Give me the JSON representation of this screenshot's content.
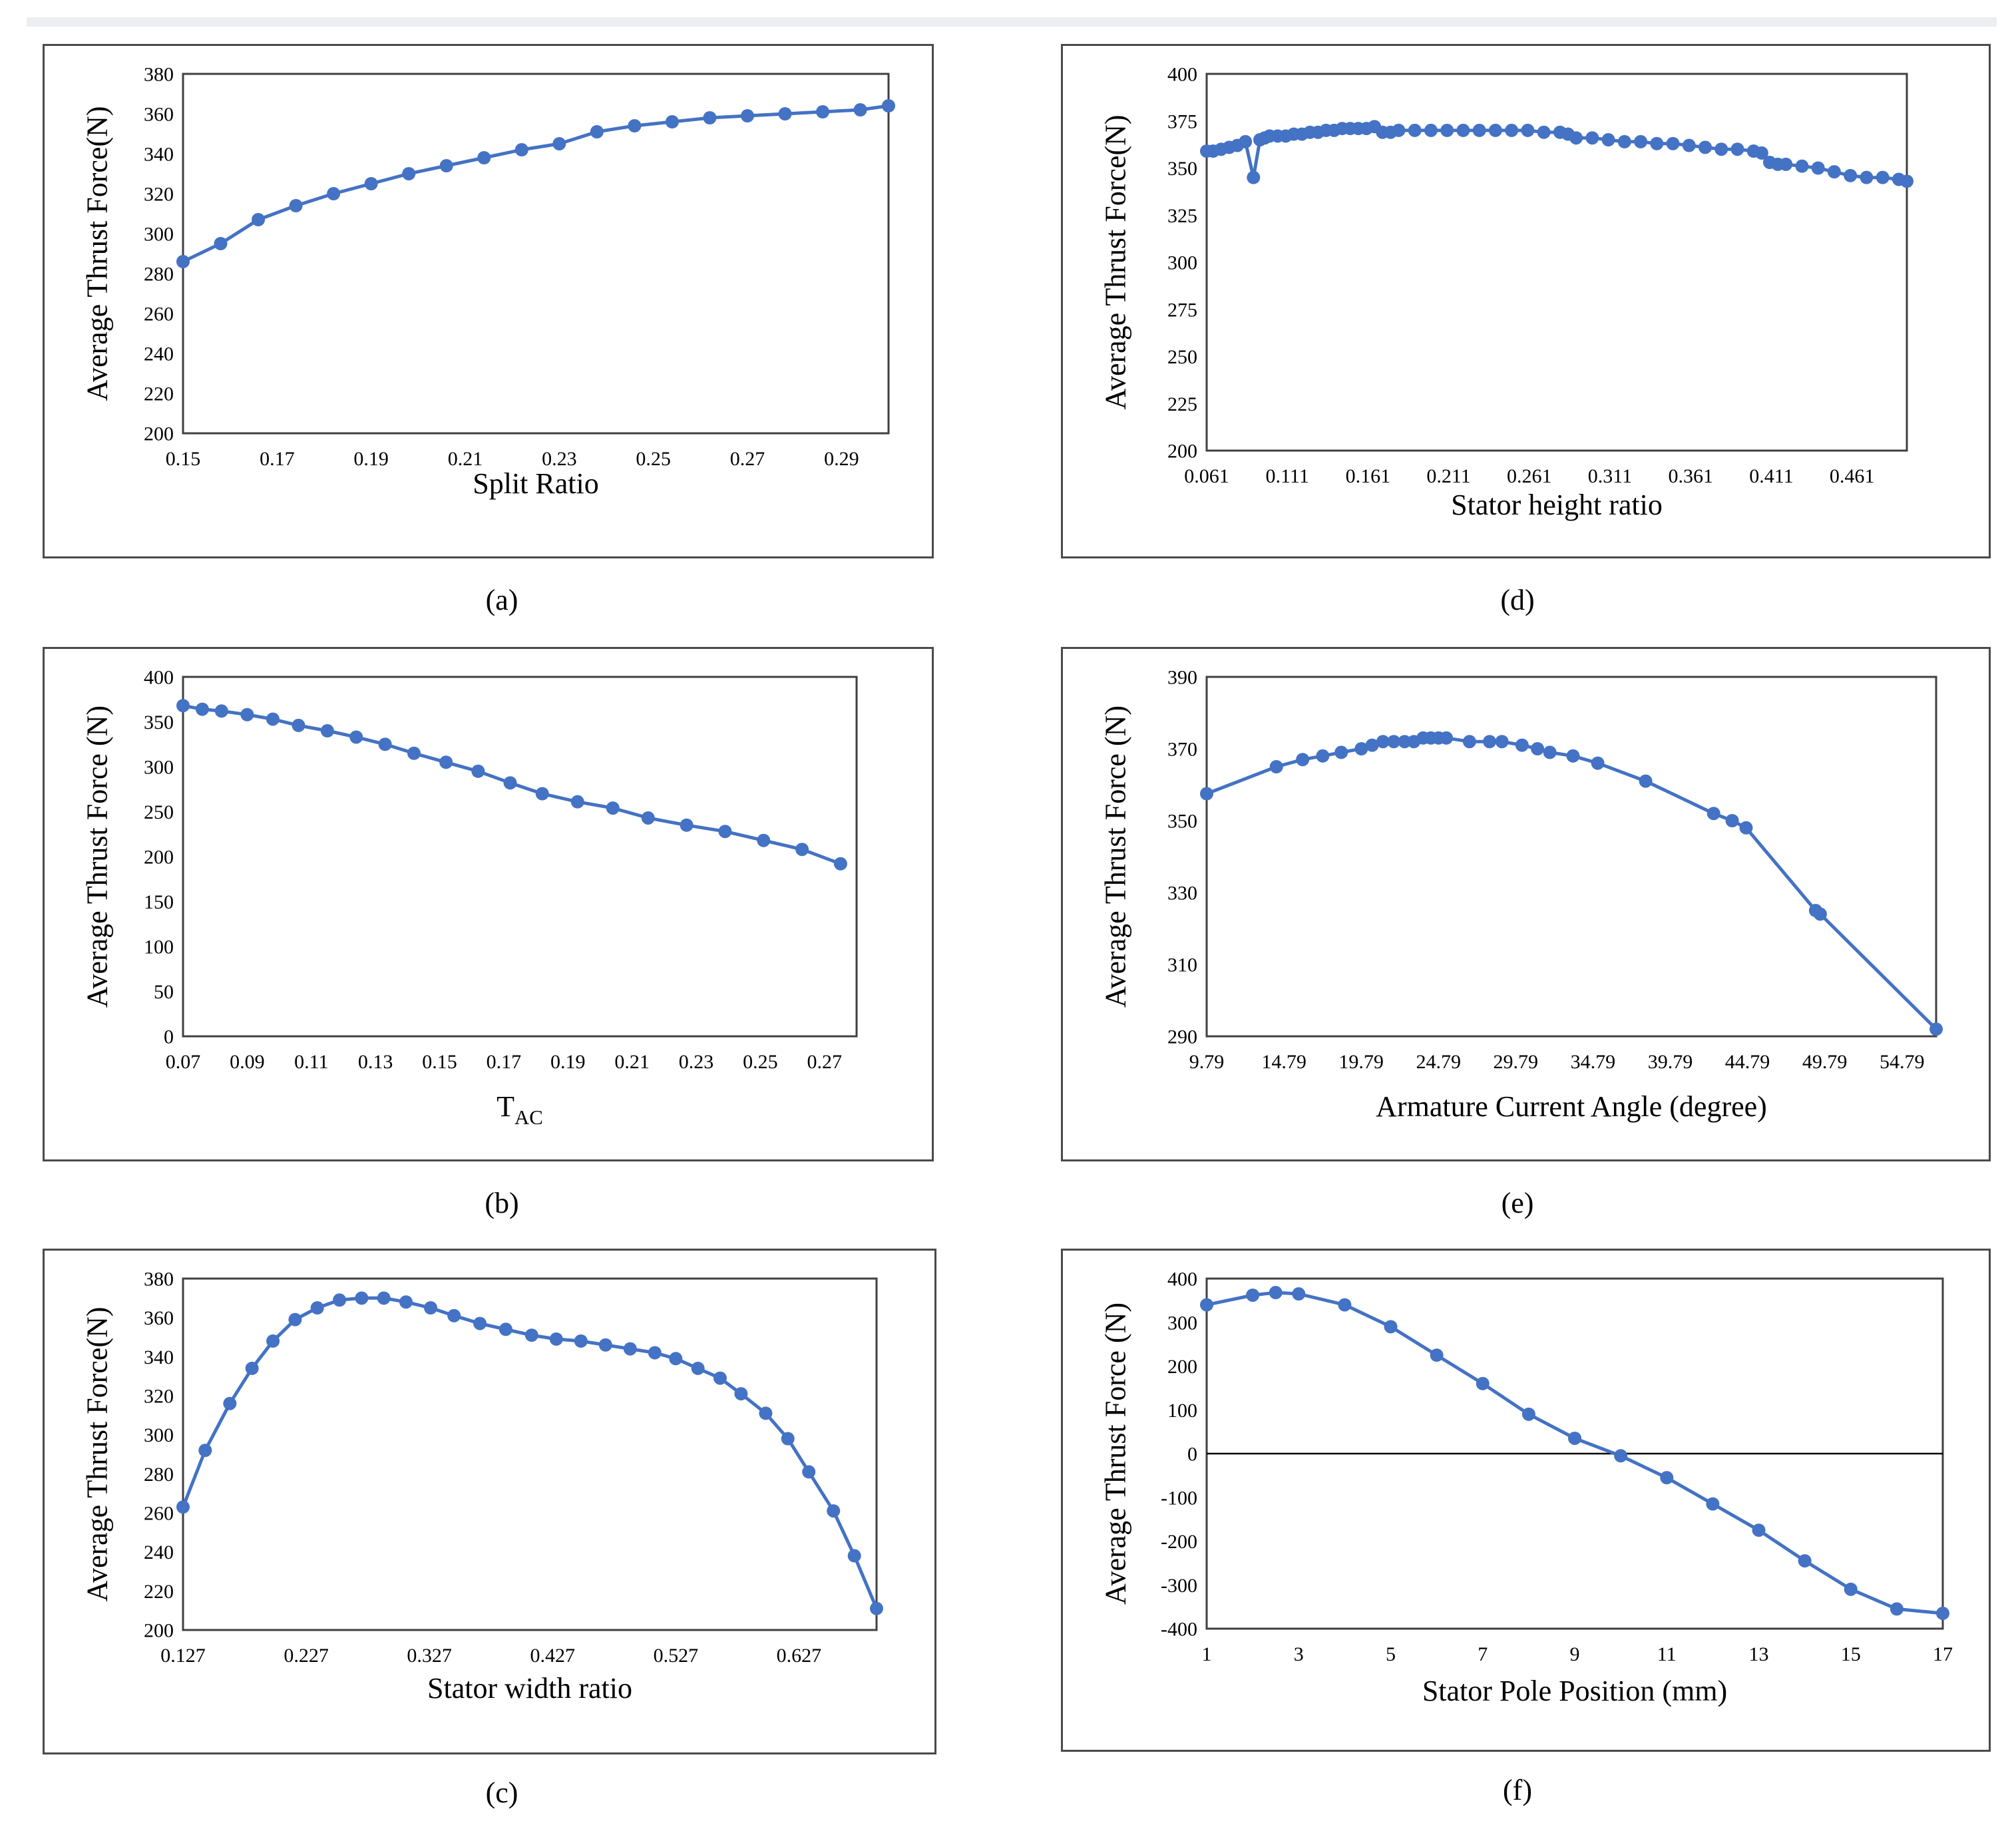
{
  "colors": {
    "series": "#4472c4",
    "axis": "#404040",
    "frame": "#4a4a4a"
  },
  "chart_data": [
    {
      "id": "a",
      "caption": "(a)",
      "type": "line",
      "title": "",
      "xlabel": "Split Ratio",
      "ylabel": "Average Thrust Force(N)",
      "xlim": [
        0.15,
        0.3
      ],
      "ylim": [
        200,
        380
      ],
      "xticks": [
        0.15,
        0.17,
        0.19,
        0.21,
        0.23,
        0.25,
        0.27,
        0.29
      ],
      "xtick_labels": [
        "0.15",
        "0.17",
        "0.19",
        "0.21",
        "0.23",
        "0.25",
        "0.27",
        "0.29"
      ],
      "yticks": [
        200,
        220,
        240,
        260,
        280,
        300,
        320,
        340,
        360,
        380
      ],
      "ytick_labels": [
        "200",
        "220",
        "240",
        "260",
        "280",
        "300",
        "320",
        "340",
        "360",
        "380"
      ],
      "x": [
        0.15,
        0.158,
        0.166,
        0.174,
        0.182,
        0.19,
        0.198,
        0.206,
        0.214,
        0.222,
        0.23,
        0.238,
        0.246,
        0.254,
        0.262,
        0.27,
        0.278,
        0.286,
        0.294,
        0.3
      ],
      "y": [
        286,
        295,
        307,
        314,
        320,
        325,
        330,
        334,
        338,
        342,
        345,
        351,
        354,
        356,
        358,
        359,
        360,
        361,
        362,
        364
      ]
    },
    {
      "id": "b",
      "caption": "(b)",
      "type": "line",
      "title": "",
      "xlabel": "T",
      "xlabel_sub": "AC",
      "ylabel": "Average Thrust Force (N)",
      "xlim": [
        0.07,
        0.28
      ],
      "ylim": [
        0,
        400
      ],
      "xticks": [
        0.07,
        0.09,
        0.11,
        0.13,
        0.15,
        0.17,
        0.19,
        0.21,
        0.23,
        0.25,
        0.27
      ],
      "xtick_labels": [
        "0.07",
        "0.09",
        "0.11",
        "0.13",
        "0.15",
        "0.17",
        "0.19",
        "0.21",
        "0.23",
        "0.25",
        "0.27"
      ],
      "yticks": [
        0,
        50,
        100,
        150,
        200,
        250,
        300,
        350,
        400
      ],
      "ytick_labels": [
        "0",
        "50",
        "100",
        "150",
        "200",
        "250",
        "300",
        "350",
        "400"
      ],
      "x": [
        0.07,
        0.076,
        0.082,
        0.09,
        0.098,
        0.106,
        0.115,
        0.124,
        0.133,
        0.142,
        0.152,
        0.162,
        0.172,
        0.182,
        0.193,
        0.204,
        0.215,
        0.227,
        0.239,
        0.251,
        0.263,
        0.275
      ],
      "y": [
        368,
        364,
        362,
        358,
        353,
        346,
        340,
        333,
        325,
        315,
        305,
        295,
        282,
        270,
        261,
        254,
        243,
        235,
        228,
        218,
        208,
        192
      ]
    },
    {
      "id": "c",
      "caption": "(c)",
      "type": "line",
      "title": "",
      "xlabel": "Stator width ratio",
      "ylabel": "Average Thrust Force(N)",
      "xlim": [
        0.127,
        0.69
      ],
      "ylim": [
        200,
        380
      ],
      "xticks": [
        0.127,
        0.227,
        0.327,
        0.427,
        0.527,
        0.627
      ],
      "xtick_labels": [
        "0.127",
        "0.227",
        "0.327",
        "0.427",
        "0.527",
        "0.627"
      ],
      "yticks": [
        200,
        220,
        240,
        260,
        280,
        300,
        320,
        340,
        360,
        380
      ],
      "ytick_labels": [
        "200",
        "220",
        "240",
        "260",
        "280",
        "300",
        "320",
        "340",
        "360",
        "380"
      ],
      "x": [
        0.127,
        0.145,
        0.165,
        0.183,
        0.2,
        0.218,
        0.236,
        0.254,
        0.272,
        0.29,
        0.308,
        0.328,
        0.347,
        0.368,
        0.389,
        0.41,
        0.43,
        0.45,
        0.47,
        0.49,
        0.51,
        0.527,
        0.545,
        0.563,
        0.58,
        0.6,
        0.618,
        0.635,
        0.655,
        0.672,
        0.69
      ],
      "y": [
        263,
        292,
        316,
        334,
        348,
        359,
        365,
        369,
        370,
        370,
        368,
        365,
        361,
        357,
        354,
        351,
        349,
        348,
        346,
        344,
        342,
        339,
        334,
        329,
        321,
        311,
        298,
        281,
        261,
        238,
        211
      ]
    },
    {
      "id": "d",
      "caption": "(d)",
      "type": "line",
      "title": "",
      "xlabel": "Stator height ratio",
      "ylabel": "Average Thrust Force(N)",
      "xlim": [
        0.061,
        0.495
      ],
      "ylim": [
        200,
        400
      ],
      "xticks": [
        0.061,
        0.111,
        0.161,
        0.211,
        0.261,
        0.311,
        0.361,
        0.411,
        0.461
      ],
      "xtick_labels": [
        "0.061",
        "0.111",
        "0.161",
        "0.211",
        "0.261",
        "0.311",
        "0.361",
        "0.411",
        "0.461"
      ],
      "yticks": [
        200,
        225,
        250,
        275,
        300,
        325,
        350,
        375,
        400
      ],
      "ytick_labels": [
        "200",
        "225",
        "250",
        "275",
        "300",
        "325",
        "350",
        "375",
        "400"
      ],
      "x": [
        0.061,
        0.065,
        0.07,
        0.075,
        0.08,
        0.085,
        0.09,
        0.094,
        0.097,
        0.1,
        0.105,
        0.11,
        0.115,
        0.12,
        0.125,
        0.13,
        0.135,
        0.14,
        0.145,
        0.15,
        0.155,
        0.16,
        0.165,
        0.17,
        0.175,
        0.18,
        0.19,
        0.2,
        0.21,
        0.22,
        0.23,
        0.24,
        0.25,
        0.26,
        0.27,
        0.28,
        0.285,
        0.29,
        0.3,
        0.31,
        0.32,
        0.33,
        0.34,
        0.35,
        0.36,
        0.37,
        0.38,
        0.39,
        0.4,
        0.405,
        0.41,
        0.415,
        0.42,
        0.43,
        0.44,
        0.45,
        0.46,
        0.47,
        0.48,
        0.49,
        0.495
      ],
      "y": [
        359,
        359,
        360,
        361,
        362,
        364,
        345,
        365,
        366,
        367,
        367,
        367,
        368,
        368,
        369,
        369,
        370,
        370,
        371,
        371,
        371,
        371,
        372,
        369,
        369,
        370,
        370,
        370,
        370,
        370,
        370,
        370,
        370,
        370,
        369,
        369,
        368,
        366,
        366,
        365,
        364,
        364,
        363,
        363,
        362,
        361,
        360,
        360,
        359,
        358,
        353,
        352,
        352,
        351,
        350,
        348,
        346,
        345,
        345,
        344,
        343
      ]
    },
    {
      "id": "e",
      "caption": "(e)",
      "type": "line",
      "title": "",
      "xlabel": "Armature Current Angle (degree)",
      "ylabel": "Average Thrust Force (N)",
      "xlim": [
        9.79,
        57.0
      ],
      "ylim": [
        290,
        390
      ],
      "xticks": [
        9.79,
        14.79,
        19.79,
        24.79,
        29.79,
        34.79,
        39.79,
        44.79,
        49.79,
        54.79
      ],
      "xtick_labels": [
        "9.79",
        "14.79",
        "19.79",
        "24.79",
        "29.79",
        "34.79",
        "39.79",
        "44.79",
        "49.79",
        "54.79"
      ],
      "yticks": [
        290,
        310,
        330,
        350,
        370,
        390
      ],
      "ytick_labels": [
        "290",
        "310",
        "330",
        "350",
        "370",
        "390"
      ],
      "x": [
        9.79,
        14.3,
        16.0,
        17.3,
        18.5,
        19.8,
        20.5,
        21.2,
        21.9,
        22.6,
        23.2,
        23.8,
        24.3,
        24.8,
        25.3,
        26.8,
        28.1,
        28.9,
        30.2,
        31.2,
        32.0,
        33.5,
        35.1,
        38.2,
        42.6,
        43.8,
        44.7,
        49.2,
        49.5,
        57.0
      ],
      "y": [
        357.5,
        365,
        367,
        368,
        369,
        370,
        371,
        372,
        372,
        372,
        372,
        373,
        373,
        373,
        373,
        372,
        372,
        372,
        371,
        370,
        369,
        368,
        366,
        361,
        352,
        350,
        348,
        325,
        324,
        292
      ]
    },
    {
      "id": "f",
      "caption": "(f)",
      "type": "line",
      "title": "",
      "xlabel": "Stator Pole Position (mm)",
      "ylabel": "Average Thrust Force (N)",
      "xlim": [
        1,
        17
      ],
      "ylim": [
        -400,
        400
      ],
      "xticks": [
        1,
        3,
        5,
        7,
        9,
        11,
        13,
        15,
        17
      ],
      "xtick_labels": [
        "1",
        "3",
        "5",
        "7",
        "9",
        "11",
        "13",
        "15",
        "17"
      ],
      "yticks": [
        -400,
        -300,
        -200,
        -100,
        0,
        100,
        200,
        300,
        400
      ],
      "ytick_labels": [
        "-400",
        "-300",
        "-200",
        "-100",
        "0",
        "100",
        "200",
        "300",
        "400"
      ],
      "x": [
        1,
        2,
        2.5,
        3,
        4,
        5,
        6,
        7,
        8,
        9,
        10,
        11,
        12,
        13,
        14,
        15,
        16,
        17
      ],
      "y": [
        340,
        362,
        368,
        365,
        340,
        290,
        225,
        160,
        90,
        35,
        -5,
        -55,
        -115,
        -175,
        -245,
        -310,
        -355,
        -365
      ]
    }
  ]
}
